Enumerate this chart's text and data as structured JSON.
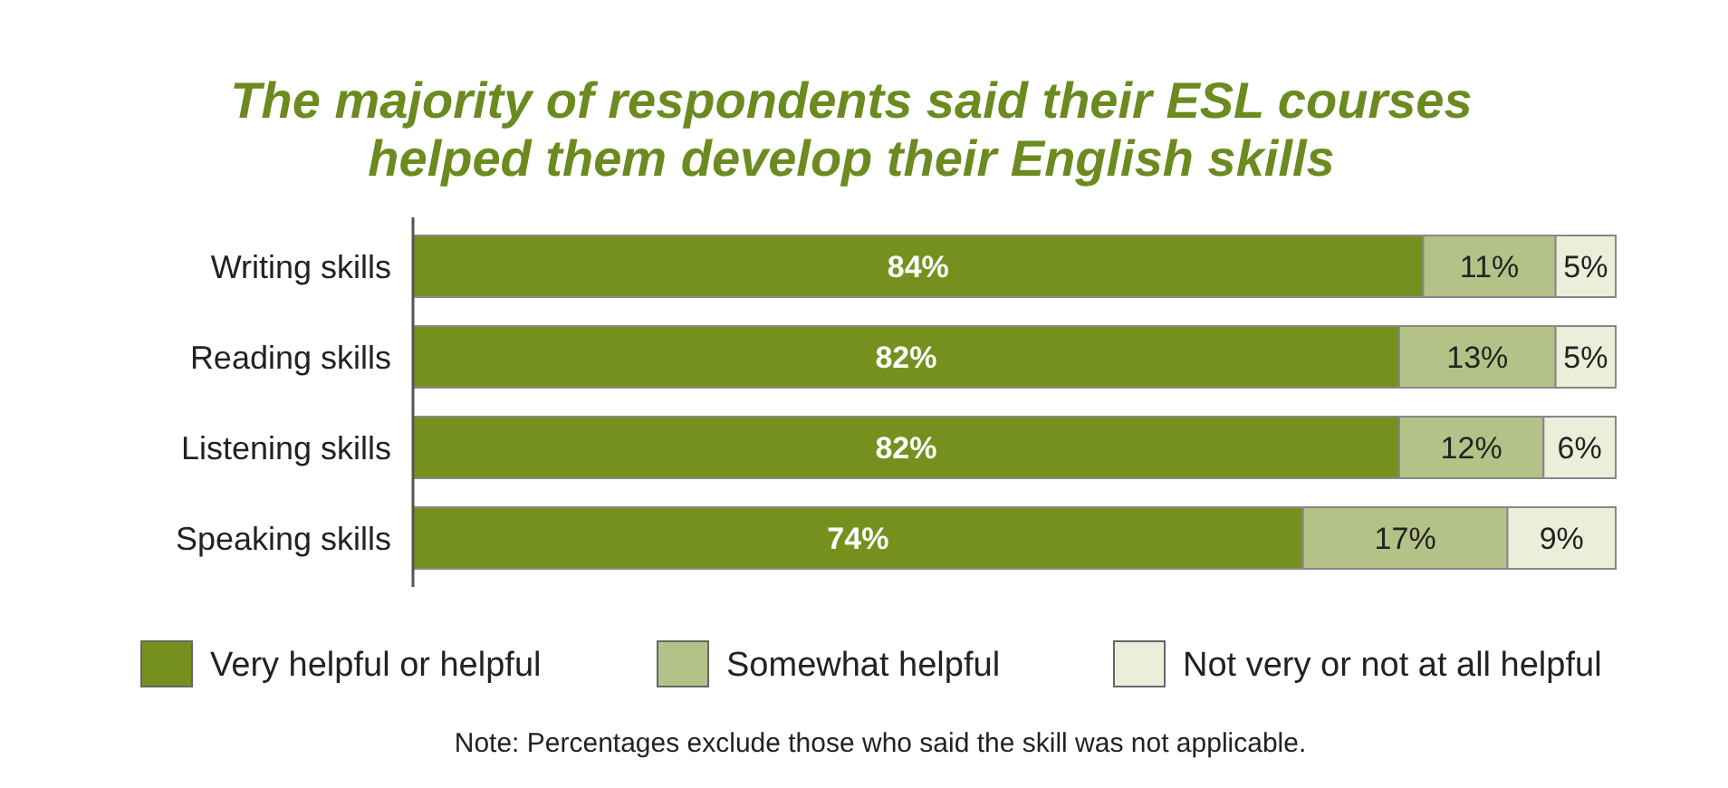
{
  "chart_data": {
    "type": "bar",
    "orientation": "horizontal",
    "stacked": true,
    "title": "The majority of respondents said their ESL courses\nhelped them develop their English skills",
    "categories": [
      "Writing skills",
      "Reading skills",
      "Listening skills",
      "Speaking skills"
    ],
    "series": [
      {
        "name": "Very helpful or helpful",
        "color": "#76901e",
        "values": [
          84,
          82,
          82,
          74
        ],
        "value_labels": [
          "84%",
          "82%",
          "82%",
          "74%"
        ]
      },
      {
        "name": "Somewhat helpful",
        "color": "#b4c288",
        "values": [
          11,
          13,
          12,
          17
        ],
        "value_labels": [
          "11%",
          "13%",
          "12%",
          "17%"
        ]
      },
      {
        "name": "Not very or not at all helpful",
        "color": "#ebeed9",
        "values": [
          5,
          5,
          6,
          9
        ],
        "value_labels": [
          "5%",
          "5%",
          "6%",
          "9%"
        ]
      }
    ],
    "legend": "bottom",
    "annotations": [
      "Note: Percentages exclude those who said the skill was not applicable."
    ]
  }
}
